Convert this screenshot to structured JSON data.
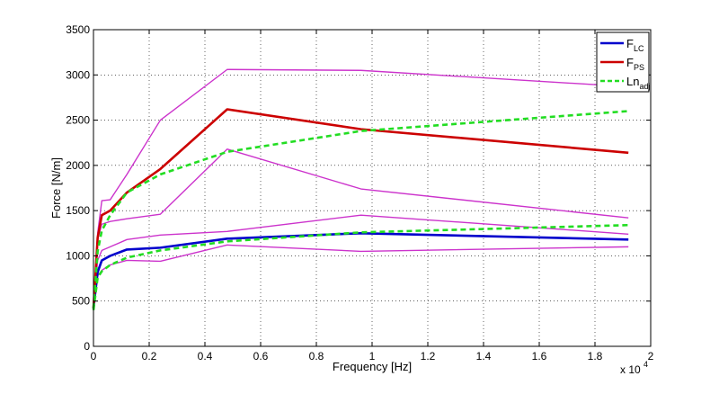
{
  "chart_data": {
    "type": "line",
    "xlabel": "Frequency [Hz]",
    "ylabel": "Force [N/m]",
    "x_exponent_label": "x 10",
    "x_exponent_power": "4",
    "x_scale": 10000,
    "xlim": [
      0,
      20000
    ],
    "ylim": [
      0,
      3500
    ],
    "x_ticks": [
      0,
      2000,
      4000,
      6000,
      8000,
      10000,
      12000,
      14000,
      16000,
      18000,
      20000
    ],
    "x_tick_labels": [
      "0",
      "0.2",
      "0.4",
      "0.6",
      "0.8",
      "1",
      "1.2",
      "1.4",
      "1.6",
      "1.8",
      "2"
    ],
    "y_ticks": [
      0,
      500,
      1000,
      1500,
      2000,
      2500,
      3000,
      3500
    ],
    "y_tick_labels": [
      "0",
      "500",
      "1000",
      "1500",
      "2000",
      "2500",
      "3000",
      "3500"
    ],
    "grid": true,
    "legend_position": "top-right",
    "colors": {
      "blue": "#0000cc",
      "red": "#cc0000",
      "green": "#22dd22",
      "magenta": "#cc33cc"
    },
    "legend": [
      {
        "base": "F",
        "sub": "LC",
        "color": "#0000cc",
        "style": "solid"
      },
      {
        "base": "F",
        "sub": "PS",
        "color": "#cc0000",
        "style": "solid"
      },
      {
        "base": "Ln",
        "sub": "adj",
        "color": "#22dd22",
        "style": "dashed"
      }
    ],
    "series": [
      {
        "name": "F_LC",
        "color": "#0000cc",
        "style": "solid",
        "width": 2.6,
        "x": [
          0,
          150,
          300,
          600,
          1200,
          2400,
          4800,
          9600,
          19200
        ],
        "y": [
          420,
          820,
          950,
          1000,
          1070,
          1090,
          1190,
          1250,
          1180
        ]
      },
      {
        "name": "F_PS",
        "color": "#cc0000",
        "style": "solid",
        "width": 2.6,
        "x": [
          0,
          150,
          300,
          600,
          1200,
          2400,
          4800,
          9600,
          19200
        ],
        "y": [
          420,
          1200,
          1450,
          1500,
          1700,
          1960,
          2620,
          2400,
          2140
        ]
      },
      {
        "name": "Ln_adj",
        "color": "#22dd22",
        "style": "dashed",
        "width": 2.6,
        "x": [
          0,
          150,
          300,
          600,
          1200,
          2400,
          4800,
          9600,
          19200
        ],
        "y": [
          420,
          1050,
          1280,
          1450,
          1700,
          1900,
          2150,
          2380,
          2600
        ]
      },
      {
        "name": "",
        "color": "#22dd22",
        "style": "dashed",
        "width": 2.6,
        "x": [
          0,
          150,
          300,
          600,
          1200,
          2400,
          4800,
          9600,
          19200
        ],
        "y": [
          400,
          760,
          830,
          900,
          980,
          1060,
          1160,
          1260,
          1340
        ]
      },
      {
        "name": "",
        "color": "#cc33cc",
        "style": "solid",
        "width": 1.4,
        "x": [
          0,
          150,
          300,
          600,
          1200,
          2400,
          4800,
          9600,
          19200
        ],
        "y": [
          420,
          1250,
          1610,
          1620,
          1900,
          2500,
          3060,
          3050,
          2870
        ]
      },
      {
        "name": "",
        "color": "#cc33cc",
        "style": "solid",
        "width": 1.4,
        "x": [
          0,
          150,
          300,
          600,
          1200,
          2400,
          4800,
          9600,
          19200
        ],
        "y": [
          420,
          1180,
          1350,
          1380,
          1410,
          1460,
          2180,
          1740,
          1420
        ]
      },
      {
        "name": "",
        "color": "#cc33cc",
        "style": "solid",
        "width": 1.4,
        "x": [
          0,
          150,
          300,
          600,
          1200,
          2400,
          4800,
          9600,
          19200
        ],
        "y": [
          420,
          950,
          1060,
          1100,
          1180,
          1230,
          1270,
          1450,
          1240
        ]
      },
      {
        "name": "",
        "color": "#cc33cc",
        "style": "solid",
        "width": 1.4,
        "x": [
          0,
          150,
          300,
          600,
          1200,
          2400,
          4800,
          9600,
          19200
        ],
        "y": [
          400,
          780,
          840,
          900,
          950,
          940,
          1120,
          1050,
          1100
        ]
      }
    ]
  }
}
